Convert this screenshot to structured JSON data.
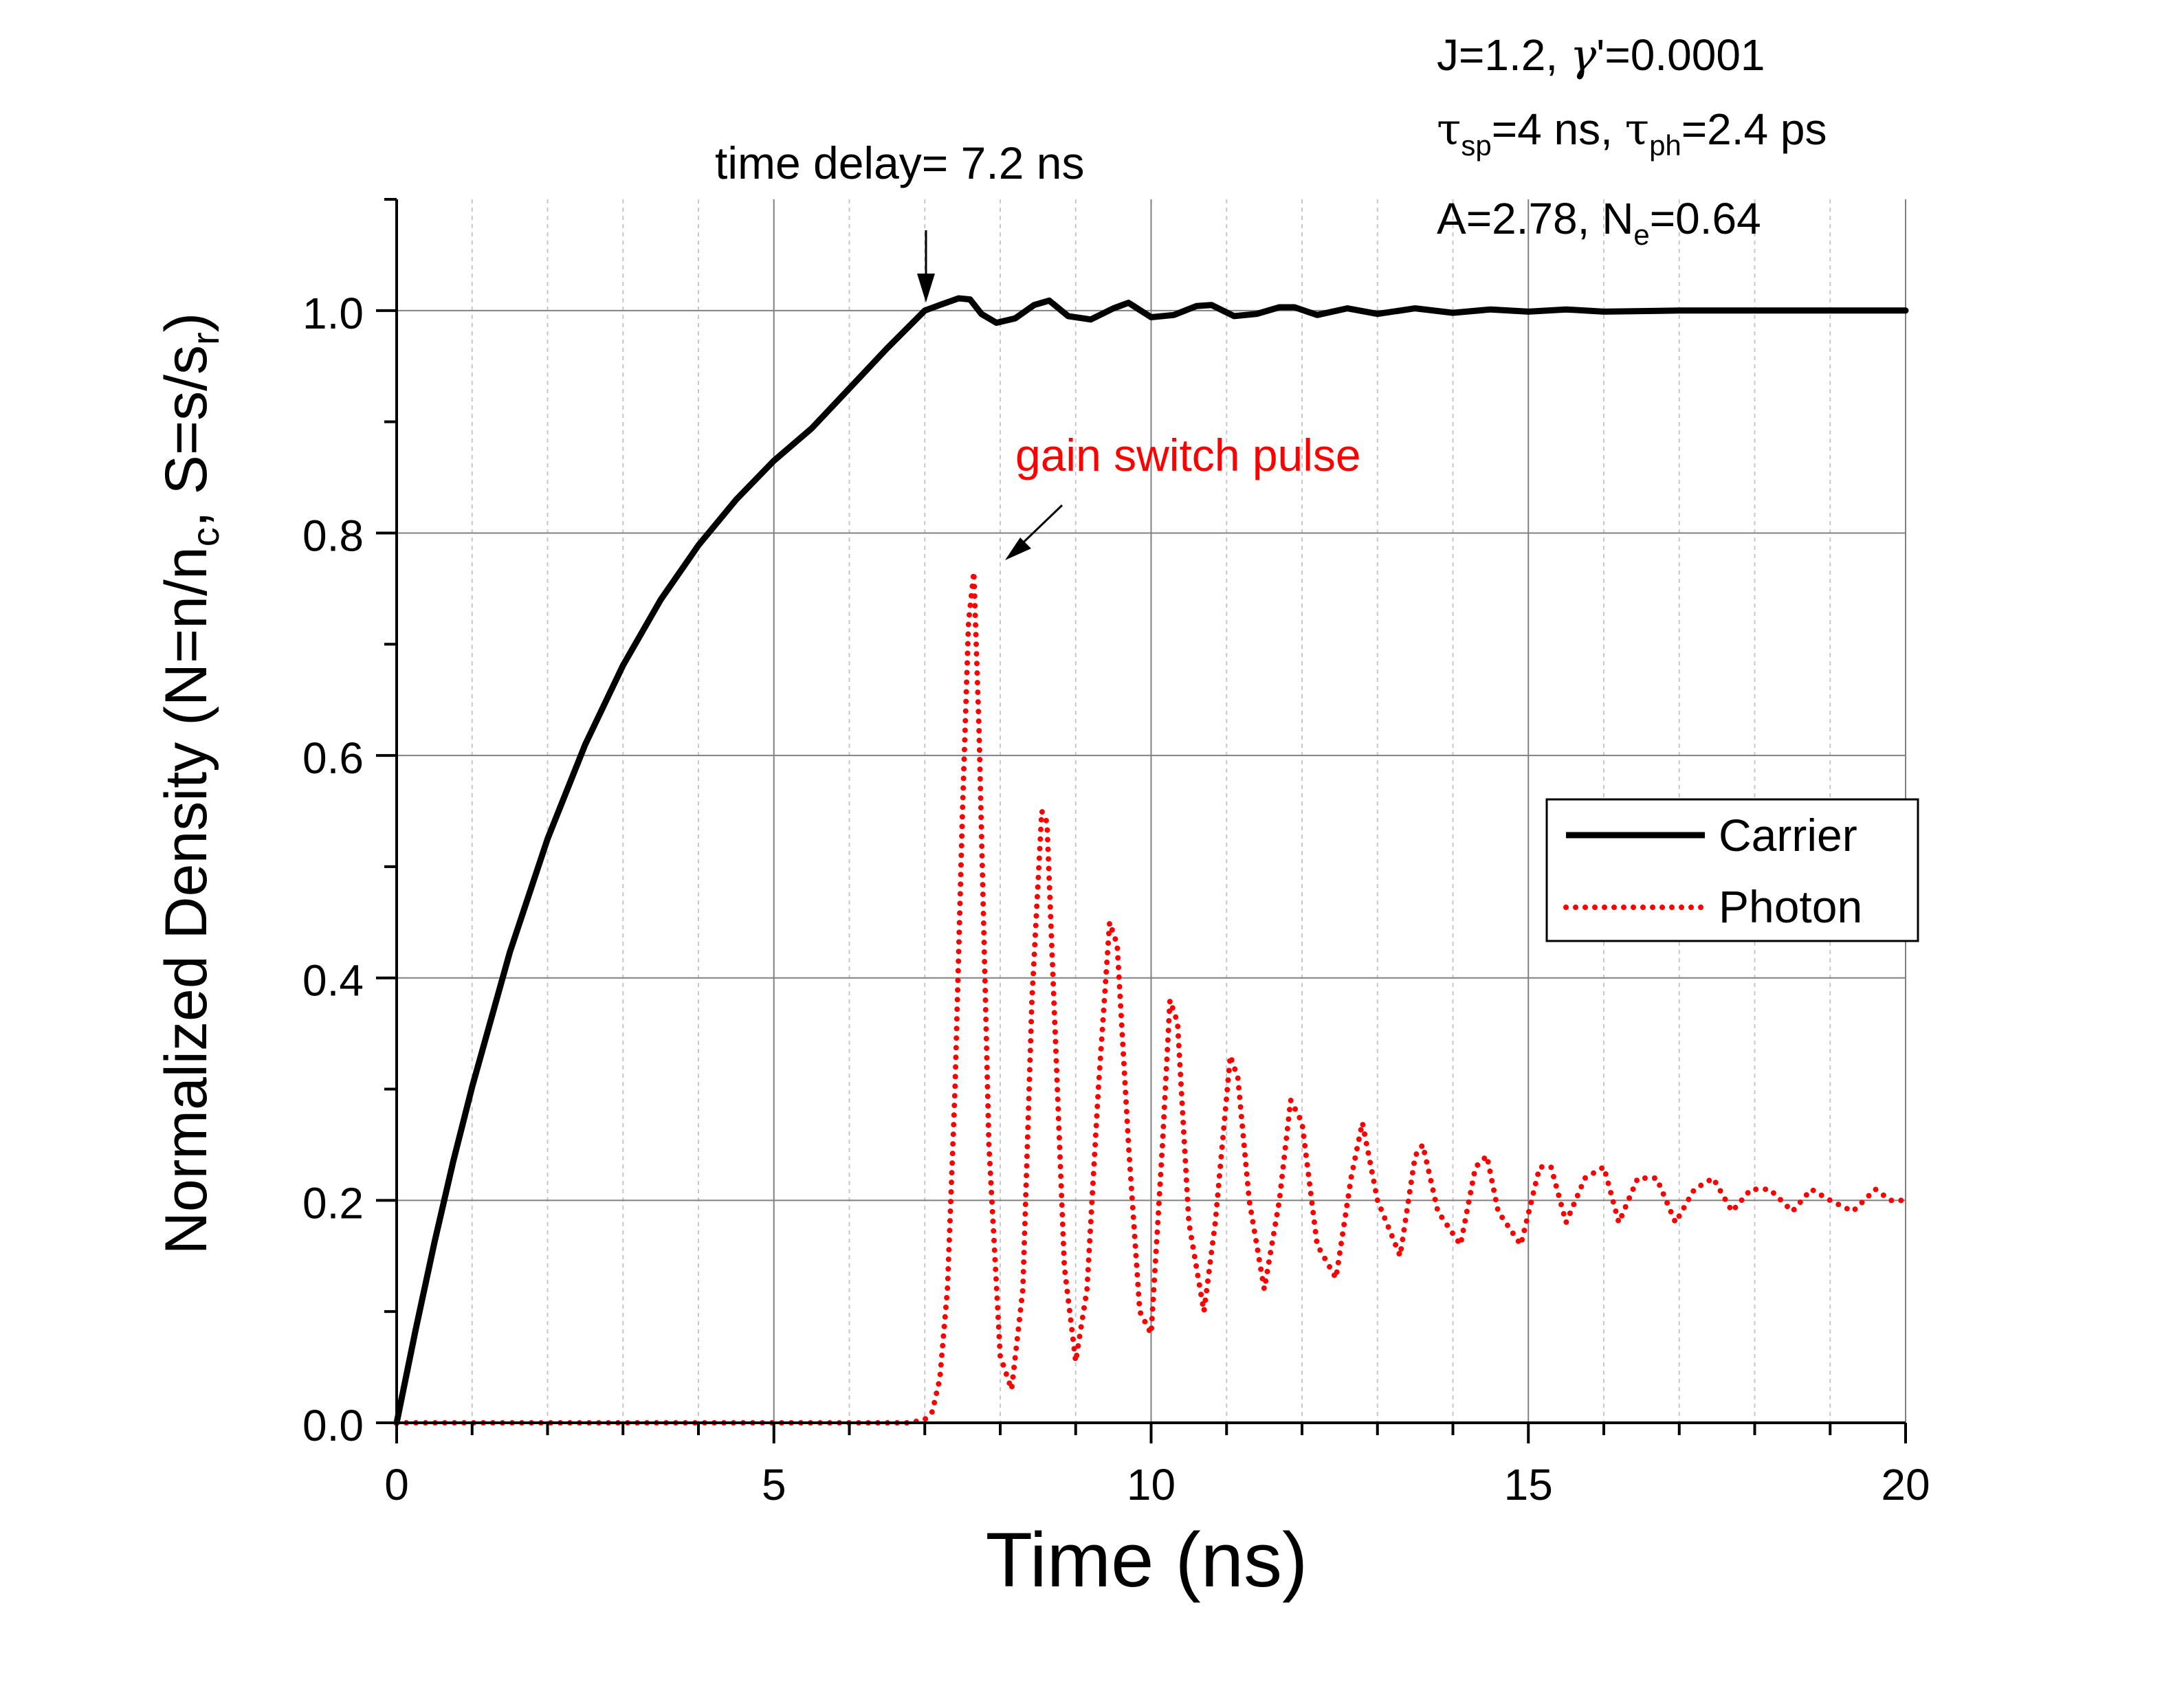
{
  "chart_data": {
    "type": "line",
    "title": "",
    "xlabel": "Time (ns)",
    "ylabel_parts": [
      "Normalized Density (N=n/n",
      "c",
      ", S=s/s",
      "r",
      ")"
    ],
    "xlim": [
      0,
      20
    ],
    "ylim": [
      0,
      1.1
    ],
    "x_ticks": [
      0,
      5,
      10,
      15,
      20
    ],
    "x_tick_labels": [
      "0",
      "5",
      "10",
      "15",
      "20"
    ],
    "y_ticks": [
      0.0,
      0.2,
      0.4,
      0.6,
      0.8,
      1.0
    ],
    "y_tick_labels": [
      "0.0",
      "0.2",
      "0.4",
      "0.6",
      "0.8",
      "1.0"
    ],
    "grid": true,
    "legend_position": "right",
    "series": [
      {
        "name": "Carrier",
        "color": "#000000",
        "style": "solid",
        "x": [
          0,
          0.25,
          0.5,
          0.75,
          1.0,
          1.5,
          2.0,
          2.5,
          3.0,
          3.5,
          4.0,
          4.5,
          5.0,
          5.5,
          6.0,
          6.5,
          7.0,
          7.2,
          7.45,
          7.6,
          7.75,
          7.95,
          8.2,
          8.45,
          8.65,
          8.9,
          9.2,
          9.5,
          9.7,
          10.0,
          10.3,
          10.6,
          10.8,
          11.1,
          11.4,
          11.7,
          11.9,
          12.2,
          12.6,
          13.0,
          13.5,
          14.0,
          14.5,
          15.0,
          15.5,
          16.0,
          17.0,
          18.0,
          19.0,
          20.0
        ],
        "values": [
          0,
          0.083,
          0.162,
          0.235,
          0.302,
          0.423,
          0.525,
          0.61,
          0.681,
          0.74,
          0.789,
          0.83,
          0.865,
          0.894,
          0.93,
          0.966,
          1.0,
          1.005,
          1.011,
          1.01,
          0.997,
          0.989,
          0.993,
          1.005,
          1.009,
          0.995,
          0.992,
          1.002,
          1.007,
          0.994,
          0.996,
          1.004,
          1.005,
          0.995,
          0.997,
          1.003,
          1.003,
          0.996,
          1.002,
          0.997,
          1.002,
          0.998,
          1.001,
          0.999,
          1.001,
          0.999,
          1.0,
          1.0,
          1.0,
          1.0
        ]
      },
      {
        "name": "Photon",
        "color": "#ff0000",
        "style": "dotted",
        "x": [
          0,
          5.0,
          6.8,
          7.0,
          7.1,
          7.2,
          7.3,
          7.4,
          7.5,
          7.58,
          7.65,
          7.72,
          7.85,
          8.0,
          8.15,
          8.3,
          8.42,
          8.55,
          8.62,
          8.7,
          8.85,
          9.0,
          9.15,
          9.3,
          9.45,
          9.55,
          9.7,
          9.85,
          10.0,
          10.15,
          10.25,
          10.35,
          10.5,
          10.7,
          10.85,
          11.05,
          11.15,
          11.3,
          11.5,
          11.7,
          11.85,
          12.0,
          12.2,
          12.45,
          12.65,
          12.8,
          13.0,
          13.3,
          13.5,
          13.6,
          13.8,
          14.1,
          14.3,
          14.45,
          14.6,
          14.9,
          15.15,
          15.3,
          15.5,
          15.75,
          16.0,
          16.2,
          16.45,
          16.7,
          16.95,
          17.2,
          17.45,
          17.7,
          17.95,
          18.2,
          18.5,
          18.75,
          19.0,
          19.3,
          19.6,
          19.8,
          20.0
        ],
        "values": [
          0.0,
          0.0,
          0.0,
          0.003,
          0.01,
          0.04,
          0.12,
          0.3,
          0.55,
          0.72,
          0.765,
          0.62,
          0.25,
          0.06,
          0.03,
          0.12,
          0.38,
          0.55,
          0.54,
          0.4,
          0.14,
          0.055,
          0.12,
          0.3,
          0.45,
          0.43,
          0.25,
          0.1,
          0.08,
          0.25,
          0.38,
          0.36,
          0.18,
          0.1,
          0.18,
          0.33,
          0.31,
          0.2,
          0.12,
          0.2,
          0.29,
          0.27,
          0.16,
          0.13,
          0.22,
          0.27,
          0.2,
          0.15,
          0.24,
          0.25,
          0.19,
          0.16,
          0.23,
          0.24,
          0.19,
          0.16,
          0.23,
          0.23,
          0.18,
          0.22,
          0.23,
          0.18,
          0.22,
          0.22,
          0.18,
          0.21,
          0.22,
          0.19,
          0.21,
          0.21,
          0.19,
          0.21,
          0.2,
          0.19,
          0.21,
          0.2,
          0.2
        ]
      }
    ],
    "annotations": {
      "time_delay": "time delay= 7.2 ns",
      "gain_switch": "gain switch pulse",
      "params_line1_a": "J=1.2, ",
      "params_line1_gamma": "γ",
      "params_line1_b": "'=0.0001",
      "params_line2_tau1": "τ",
      "params_line2_sub1": "sp",
      "params_line2_mid": "=4 ns, ",
      "params_line2_tau2": "τ",
      "params_line2_sub2": "ph",
      "params_line2_end": "=2.4 ps",
      "params_line3_a": "A=2.78, N",
      "params_line3_sub": "e",
      "params_line3_b": "=0.64"
    },
    "legend": {
      "carrier": "Carrier",
      "photon": "Photon"
    }
  }
}
